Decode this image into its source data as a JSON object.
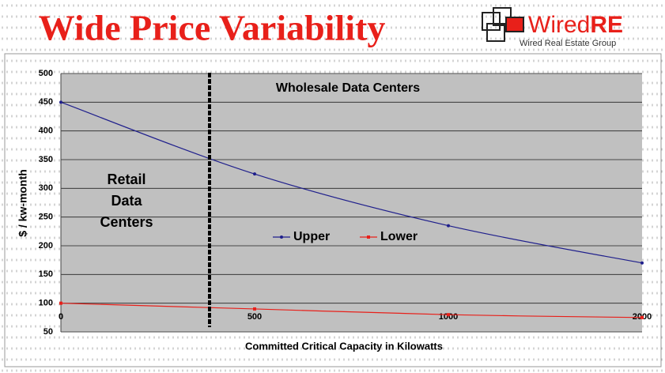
{
  "header": {
    "title": "Wide Price Variability",
    "logo_main": "Wired",
    "logo_accent": "RE",
    "logo_sub": "Wired Real Estate Group"
  },
  "chart_data": {
    "type": "line",
    "x_label": "Committed Critical Capacity in Kilowatts",
    "y_label": "$ / kw-month",
    "categories": [
      "0",
      "500",
      "1000",
      "2000"
    ],
    "series": [
      {
        "name": "Upper",
        "color": "#1f1f8c",
        "values": [
          450,
          325,
          235,
          170
        ]
      },
      {
        "name": "Lower",
        "color": "#e8201a",
        "values": [
          100,
          90,
          80,
          75
        ]
      }
    ],
    "ylim": [
      50,
      500
    ],
    "yticks": [
      50,
      100,
      150,
      200,
      250,
      300,
      350,
      400,
      450,
      500
    ],
    "grid": true,
    "plot_color": "#c0c0c0",
    "legend": "center",
    "annotations": {
      "wholesale": "Wholesale Data Centers",
      "retail": [
        "Retail",
        "Data",
        "Centers"
      ]
    }
  }
}
